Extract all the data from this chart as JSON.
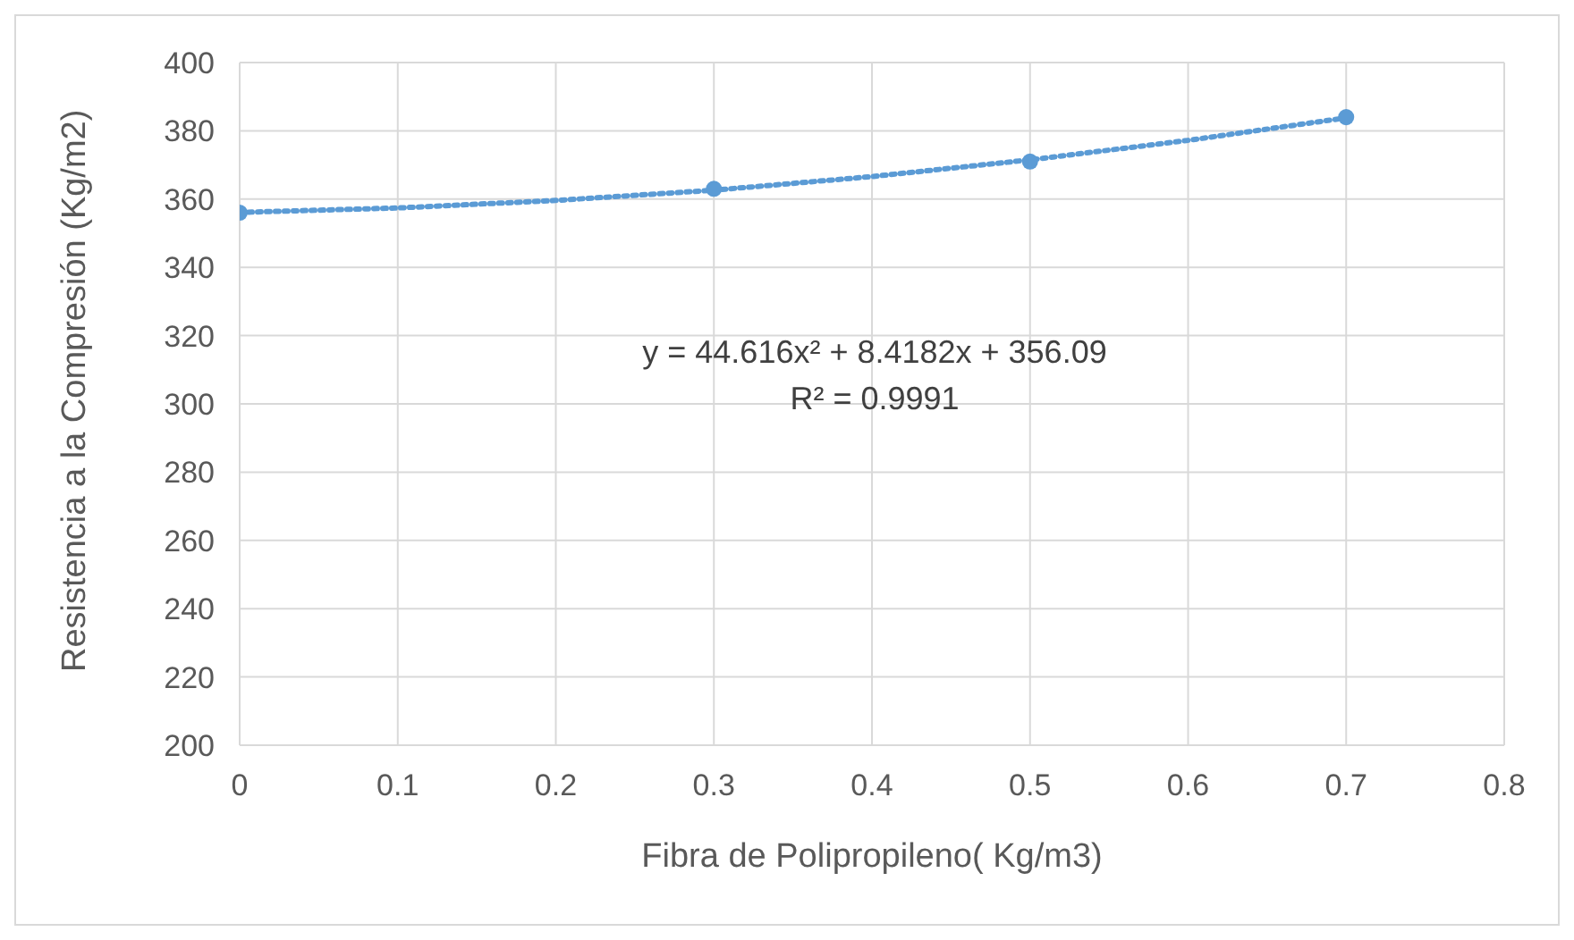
{
  "chart_data": {
    "type": "scatter",
    "xlabel": "Fibra de Polipropileno( Kg/m3)",
    "ylabel": "Resistencia a la Compresión (Kg/m2)",
    "xlim": [
      0,
      0.8
    ],
    "xticks": [
      0,
      0.1,
      0.2,
      0.3,
      0.4,
      0.5,
      0.6,
      0.7,
      0.8
    ],
    "ylim": [
      200,
      400
    ],
    "yticks": [
      200,
      220,
      240,
      260,
      280,
      300,
      320,
      340,
      360,
      380,
      400
    ],
    "grid": true,
    "legend": false,
    "line_style": "dotted",
    "series": [
      {
        "color": "#5b9bd5",
        "marker": "circle",
        "x": [
          0,
          0.3,
          0.5,
          0.7
        ],
        "values": [
          356,
          363,
          371,
          384
        ]
      },
      {
        "type": "line",
        "marker": "none",
        "color": "#5b9bd5",
        "x": [
          0,
          0.1,
          0.2,
          0.3,
          0.4,
          0.5,
          0.6,
          0.7
        ],
        "values": [
          356.1,
          357.4,
          359.6,
          362.6,
          366.6,
          371.5,
          377.2,
          383.8
        ]
      }
    ],
    "annotations": [
      "y = 44.616x² + 8.4182x + 356.09",
      "R² = 0.9991"
    ]
  }
}
